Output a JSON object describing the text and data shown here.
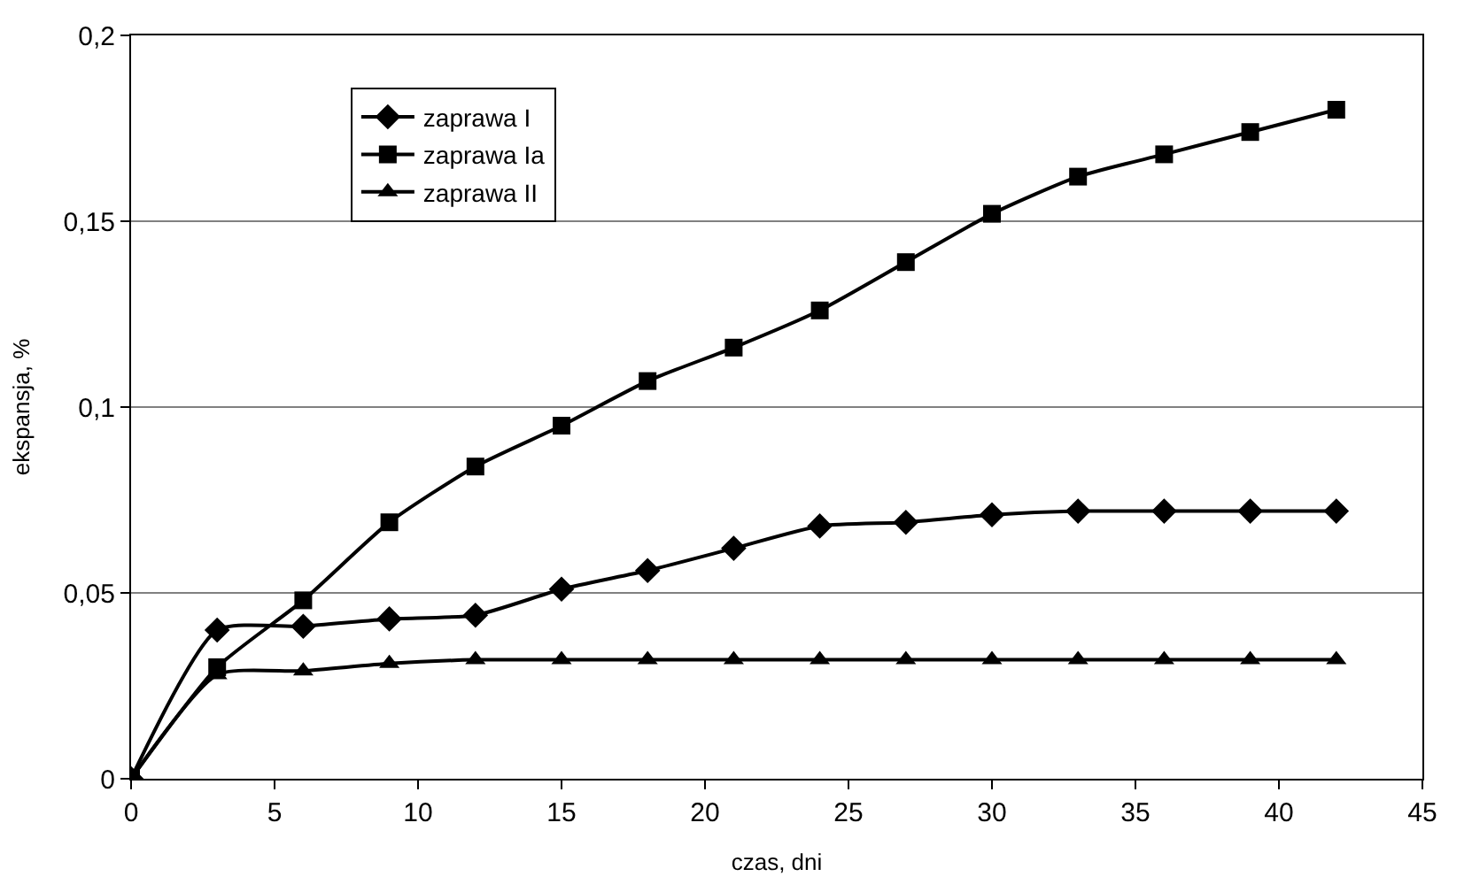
{
  "chart_data": {
    "type": "line",
    "xlabel": "czas, dni",
    "ylabel": "ekspansja, %",
    "x": [
      0,
      3,
      6,
      9,
      12,
      15,
      18,
      21,
      24,
      27,
      30,
      33,
      36,
      39,
      42
    ],
    "series": [
      {
        "name": "zaprawa I",
        "color": "#000000",
        "marker": "diamond",
        "values": [
          0,
          0.04,
          0.041,
          0.043,
          0.044,
          0.051,
          0.056,
          0.062,
          0.068,
          0.069,
          0.071,
          0.072,
          0.072,
          0.072,
          0.072
        ]
      },
      {
        "name": "zaprawa Ia",
        "color": "#000000",
        "marker": "square",
        "values": [
          0,
          0.03,
          0.048,
          0.069,
          0.084,
          0.095,
          0.107,
          0.116,
          0.126,
          0.139,
          0.152,
          0.162,
          0.168,
          0.174,
          0.18
        ]
      },
      {
        "name": "zaprawa II",
        "color": "#000000",
        "marker": "triangle",
        "values": [
          0,
          0.028,
          0.029,
          0.031,
          0.032,
          0.032,
          0.032,
          0.032,
          0.032,
          0.032,
          0.032,
          0.032,
          0.032,
          0.032,
          0.032
        ]
      }
    ],
    "xlim": [
      0,
      45
    ],
    "xticks": [
      0,
      5,
      10,
      15,
      20,
      25,
      30,
      35,
      40,
      45
    ],
    "ylim": [
      0,
      0.2
    ],
    "yticks": [
      0,
      {
        "value": 0.05,
        "label": "0,05"
      },
      {
        "value": 0.1,
        "label": "0,1"
      },
      {
        "value": 0.15,
        "label": "0,15"
      },
      {
        "value": 0.2,
        "label": "0,2"
      }
    ],
    "grid": "y",
    "legend": "top left",
    "line_style": "solid"
  }
}
